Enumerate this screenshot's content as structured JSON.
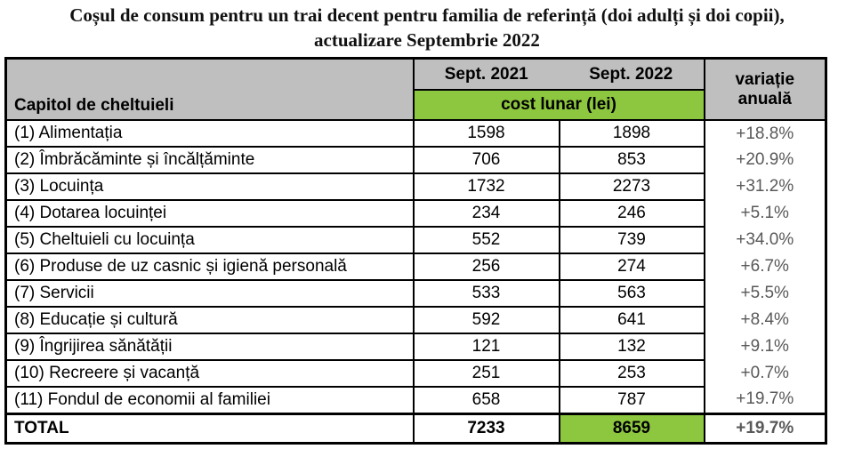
{
  "title": {
    "line1": "Coșul de consum pentru un trai decent pentru familia de referință (doi adulți și doi copii),",
    "line2": "actualizare Septembrie 2022"
  },
  "table": {
    "header": {
      "capitol": "Capitol de cheltuieli",
      "sept_2021": "Sept. 2021",
      "sept_2022": "Sept. 2022",
      "cost_lunar": "cost lunar (lei)",
      "variatie_line1": "variație",
      "variatie_line2": "anuală"
    },
    "rows": [
      {
        "label": "(1) Alimentația",
        "v2021": "1598",
        "v2022": "1898",
        "change": "+18.8%"
      },
      {
        "label": "(2) Îmbrăcăminte și încălțăminte",
        "v2021": "706",
        "v2022": "853",
        "change": "+20.9%"
      },
      {
        "label": "(3) Locuința",
        "v2021": "1732",
        "v2022": "2273",
        "change": "+31.2%"
      },
      {
        "label": "(4) Dotarea locuinței",
        "v2021": "234",
        "v2022": "246",
        "change": "+5.1%"
      },
      {
        "label": "(5) Cheltuieli cu locuința",
        "v2021": "552",
        "v2022": "739",
        "change": "+34.0%"
      },
      {
        "label": "(6) Produse de uz casnic și igienă personală",
        "v2021": "256",
        "v2022": "274",
        "change": "+6.7%"
      },
      {
        "label": "(7) Servicii",
        "v2021": "533",
        "v2022": "563",
        "change": "+5.5%"
      },
      {
        "label": "(8) Educație și cultură",
        "v2021": "592",
        "v2022": "641",
        "change": "+8.4%"
      },
      {
        "label": "(9) Îngrijirea sănătății",
        "v2021": "121",
        "v2022": "132",
        "change": "+9.1%"
      },
      {
        "label": "(10) Recreere și vacanță",
        "v2021": "251",
        "v2022": "253",
        "change": "+0.7%"
      },
      {
        "label": "(11) Fondul de economii al familiei",
        "v2021": "658",
        "v2022": "787",
        "change": "+19.7%"
      }
    ],
    "total": {
      "label": "TOTAL",
      "v2021": "7233",
      "v2022": "8659",
      "change": "+19.7%"
    }
  },
  "colors": {
    "header_gray": "#bfbfbf",
    "highlight_green": "#8dc63f",
    "change_text_gray": "#595959",
    "border_black": "#000000"
  }
}
